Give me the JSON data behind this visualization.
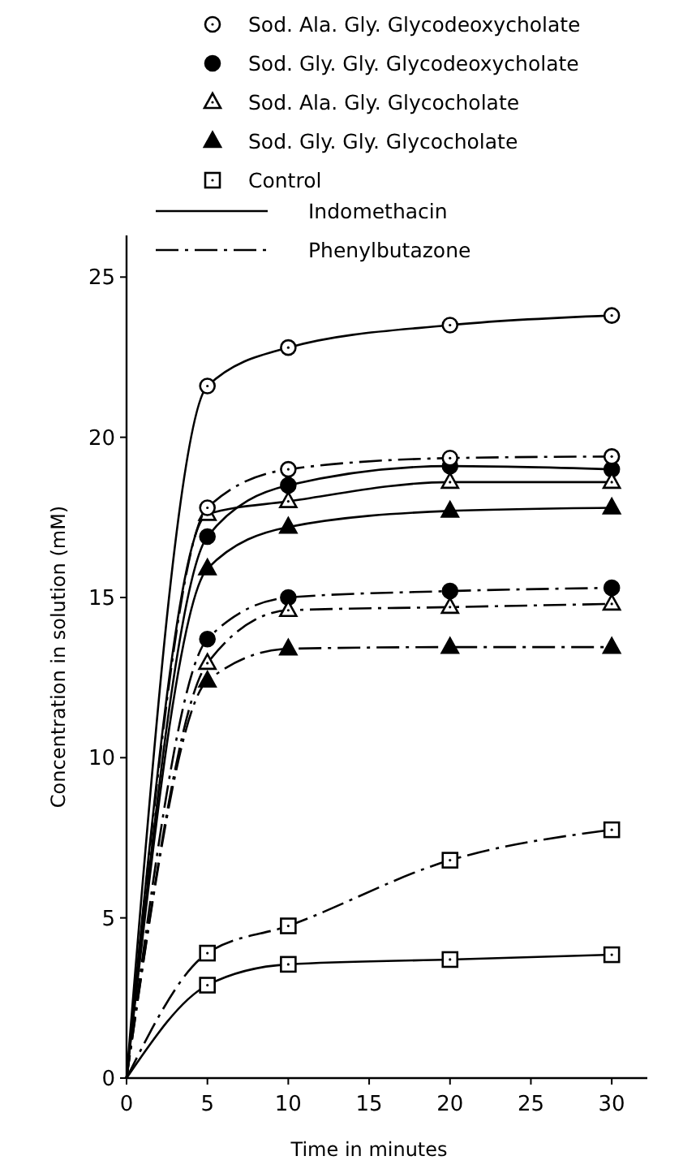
{
  "chart_data": {
    "type": "line",
    "xlabel": "Time in minutes",
    "ylabel": "Concentration in solution (mM)",
    "x": [
      0,
      5,
      10,
      20,
      30
    ],
    "xlim": [
      0,
      32.2
    ],
    "xticks": [
      0,
      5,
      10,
      15,
      20,
      25,
      30
    ],
    "ylim": [
      0,
      26.3
    ],
    "yticks": [
      0,
      5,
      10,
      15,
      20,
      25
    ],
    "legend": "top",
    "grid": false,
    "annotations": [
      "Indomethacin",
      "Phenylbutazone"
    ],
    "series": [
      {
        "name": "Sod. Ala. Gly. Glycodeoxycholate",
        "color": "#000000",
        "marker": "circle-open",
        "line_style": "solid",
        "values": [
          0,
          21.6,
          22.8,
          23.5,
          23.8
        ]
      },
      {
        "name": "Sod. Gly. Gly. Glycodeoxycholate",
        "color": "#000000",
        "marker": "circle",
        "line_style": "solid",
        "values": [
          0,
          16.9,
          18.5,
          19.1,
          19.0
        ]
      },
      {
        "name": "Sod. Ala. Gly. Glycocholate",
        "color": "#000000",
        "marker": "triangle-open",
        "line_style": "solid",
        "values": [
          0,
          17.6,
          18.0,
          18.6,
          18.6
        ]
      },
      {
        "name": "Sod. Gly. Gly. Glycocholate",
        "color": "#000000",
        "marker": "triangle",
        "line_style": "solid",
        "values": [
          0,
          15.9,
          17.2,
          17.7,
          17.8
        ]
      },
      {
        "name": "Control",
        "color": "#000000",
        "marker": "square-open",
        "line_style": "solid",
        "values": [
          0,
          2.9,
          3.55,
          3.7,
          3.85
        ]
      },
      {
        "color": "#000000",
        "marker": "circle-open",
        "line_style": "dashdot",
        "values": [
          0,
          17.8,
          19.0,
          19.35,
          19.4
        ]
      },
      {
        "color": "#000000",
        "marker": "circle",
        "line_style": "dashdot",
        "values": [
          0,
          13.7,
          15.0,
          15.2,
          15.3
        ]
      },
      {
        "color": "#000000",
        "marker": "triangle-open",
        "line_style": "dashdot",
        "values": [
          0,
          12.95,
          14.6,
          14.7,
          14.8
        ]
      },
      {
        "color": "#000000",
        "marker": "triangle",
        "line_style": "dashdot",
        "values": [
          0,
          12.4,
          13.4,
          13.45,
          13.45
        ]
      },
      {
        "color": "#000000",
        "marker": "square-open",
        "line_style": "dashdot",
        "values": [
          0,
          3.9,
          4.75,
          6.8,
          7.75
        ]
      }
    ]
  }
}
